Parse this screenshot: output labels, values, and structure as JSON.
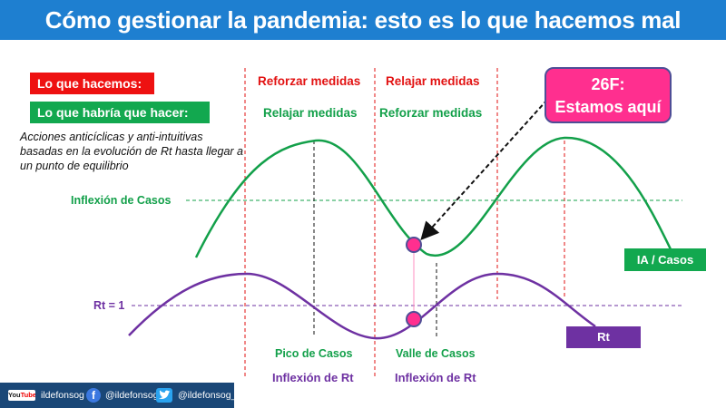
{
  "header": {
    "title": "Cómo gestionar la pandemia: esto es lo que hacemos mal"
  },
  "legend": {
    "doing_label": "Lo que hacemos:",
    "should_label": "Lo que habría que hacer:"
  },
  "note": "Acciones anticíclicas y anti-intuitivas basadas en la evolución de Rt hasta llegar a un punto de equilibrio",
  "phases": {
    "doing": [
      "Reforzar medidas",
      "Relajar medidas"
    ],
    "should": [
      "Relajar medidas",
      "Reforzar medidas"
    ]
  },
  "callout": {
    "line1": "26F:",
    "line2": "Estamos aquí"
  },
  "reference_lines": {
    "cases_inflection": "Inflexión de Casos",
    "rt_one": "Rt = 1"
  },
  "series": {
    "cases_label": "IA / Casos",
    "rt_label": "Rt"
  },
  "bottom_labels": {
    "peak_cases": "Pico de Casos",
    "valley_cases": "Valle de Casos",
    "inflection_rt_1": "Inflexión de Rt",
    "inflection_rt_2": "Inflexión de Rt"
  },
  "footer": {
    "youtube_badge_a": "You",
    "youtube_badge_b": "Tube",
    "youtube_handle": "ildefonsog",
    "facebook_handle": "@ildefonsog",
    "twitter_handle": "@ildefonsog_"
  },
  "colors": {
    "header_blue": "#1e7fd0",
    "red": "#ee1111",
    "green": "#12a84f",
    "purple": "#6e31a2",
    "pink": "#ff2f8f",
    "footer_navy": "#1a4777"
  }
}
